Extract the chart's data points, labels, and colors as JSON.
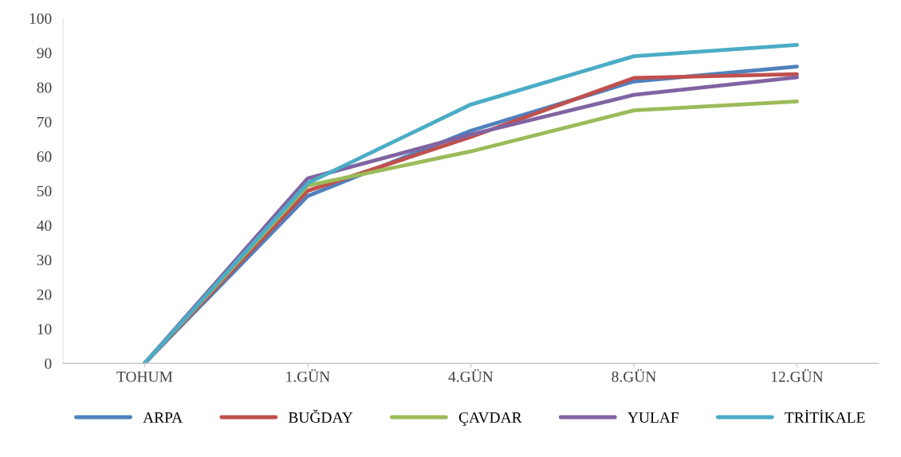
{
  "chart_data": {
    "type": "line",
    "categories": [
      "TOHUM",
      "1.GÜN",
      "4.GÜN",
      "8.GÜN",
      "12.GÜN"
    ],
    "series": [
      {
        "name": "ARPA",
        "color": "#4f81bd",
        "values": [
          0,
          48.5,
          67.4,
          81.7,
          86
        ]
      },
      {
        "name": "BUĞDAY",
        "color": "#c0504d",
        "values": [
          0,
          50,
          65.6,
          82.7,
          83.8
        ]
      },
      {
        "name": "ÇAVDAR",
        "color": "#9bbb59",
        "values": [
          0,
          51.5,
          61.4,
          73.3,
          75.9
        ]
      },
      {
        "name": "YULAF",
        "color": "#8064a2",
        "values": [
          0,
          53.6,
          66.3,
          77.8,
          82.9
        ]
      },
      {
        "name": "TRİTİKALE",
        "color": "#4bacc6",
        "values": [
          0,
          52.2,
          75,
          89,
          92.3
        ]
      }
    ],
    "ylim": [
      0,
      100
    ],
    "yticks": [
      0,
      10,
      20,
      30,
      40,
      50,
      60,
      70,
      80,
      90,
      100
    ],
    "legend": "bottom",
    "grid": false,
    "marker": "none",
    "line_style": "solid"
  }
}
